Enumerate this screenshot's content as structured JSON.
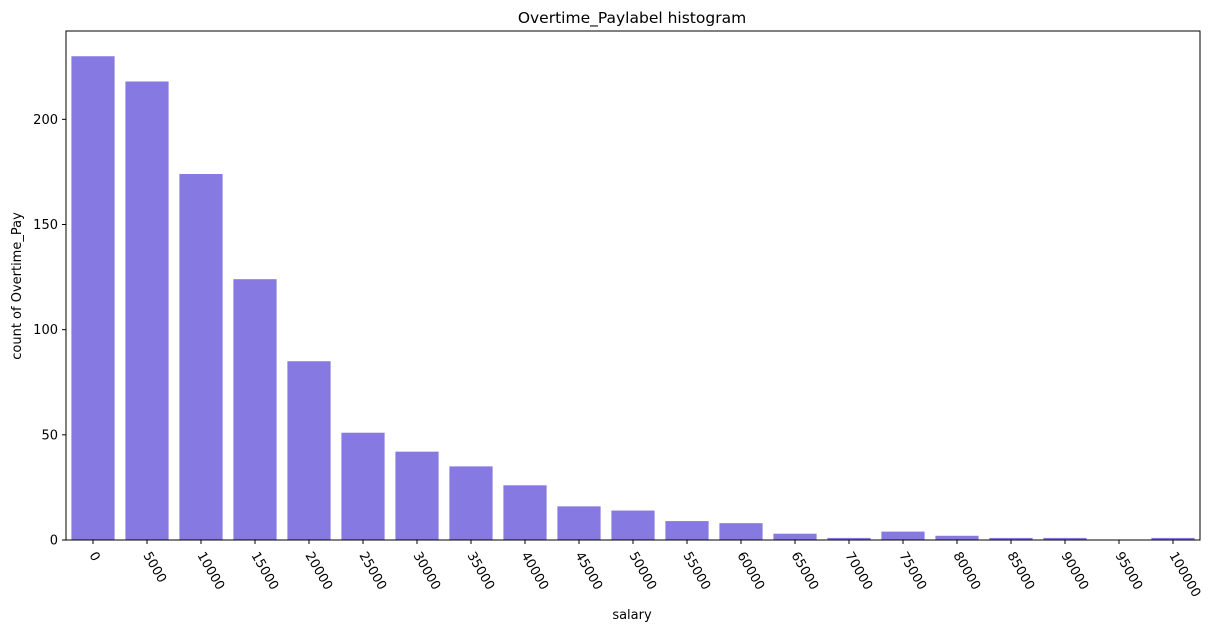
{
  "chart_data": {
    "type": "bar",
    "title": "Overtime_Paylabel histogram",
    "xlabel": "salary",
    "ylabel": "count of Overtime_Pay",
    "categories": [
      "0",
      "5000",
      "10000",
      "15000",
      "20000",
      "25000",
      "30000",
      "35000",
      "40000",
      "45000",
      "50000",
      "55000",
      "60000",
      "65000",
      "70000",
      "75000",
      "80000",
      "85000",
      "90000",
      "95000",
      "100000"
    ],
    "values": [
      230,
      218,
      174,
      124,
      85,
      51,
      42,
      35,
      26,
      16,
      14,
      9,
      8,
      3,
      1,
      4,
      2,
      1,
      1,
      0,
      1
    ],
    "ylim": [
      0,
      242
    ],
    "yticks": [
      0,
      50,
      100,
      150,
      200
    ],
    "bar_color": "#8779e2",
    "grid": false,
    "legend": "none"
  }
}
